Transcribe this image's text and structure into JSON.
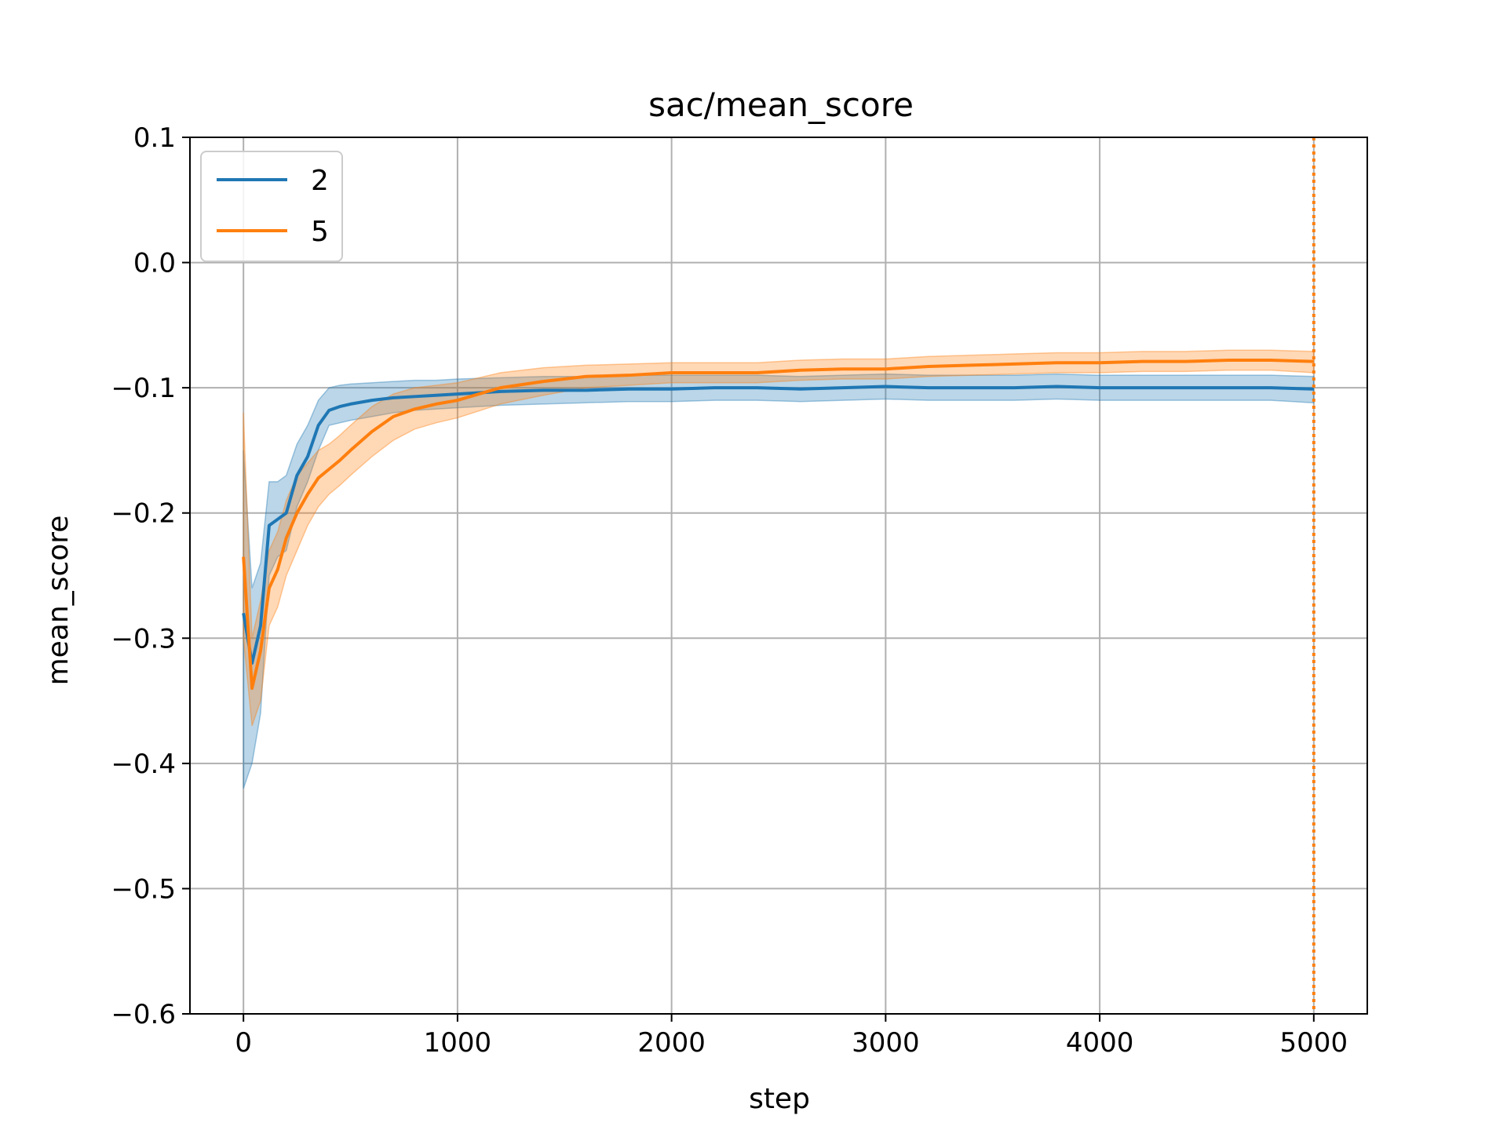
{
  "chart_data": {
    "type": "line",
    "title": "sac/mean_score",
    "xlabel": "step",
    "ylabel": "mean_score",
    "xlim": [
      -250,
      5250
    ],
    "ylim": [
      -0.6,
      0.1
    ],
    "xticks": [
      0,
      1000,
      2000,
      3000,
      4000,
      5000
    ],
    "xtick_labels": [
      "0",
      "1000",
      "2000",
      "3000",
      "4000",
      "5000"
    ],
    "yticks": [
      0.1,
      0.0,
      -0.1,
      -0.2,
      -0.3,
      -0.4,
      -0.5,
      -0.6
    ],
    "ytick_labels": [
      "0.1",
      "0.0",
      "−0.1",
      "−0.2",
      "−0.3",
      "−0.4",
      "−0.5",
      "−0.6"
    ],
    "grid": true,
    "legend_position": "top-left",
    "vertical_marker": {
      "x": 5000,
      "style": "dotted",
      "color": "#ff7f0e"
    },
    "series": [
      {
        "name": "2",
        "color": "#1f77b4",
        "x": [
          0,
          40,
          80,
          120,
          160,
          200,
          250,
          300,
          350,
          400,
          450,
          500,
          600,
          700,
          800,
          900,
          1000,
          1200,
          1400,
          1600,
          1800,
          2000,
          2200,
          2400,
          2600,
          2800,
          3000,
          3200,
          3400,
          3600,
          3800,
          4000,
          4200,
          4400,
          4600,
          4800,
          5000
        ],
        "y": [
          -0.28,
          -0.32,
          -0.29,
          -0.21,
          -0.205,
          -0.2,
          -0.17,
          -0.155,
          -0.13,
          -0.118,
          -0.115,
          -0.113,
          -0.11,
          -0.108,
          -0.107,
          -0.106,
          -0.105,
          -0.103,
          -0.102,
          -0.102,
          -0.101,
          -0.101,
          -0.1,
          -0.1,
          -0.101,
          -0.1,
          -0.099,
          -0.1,
          -0.1,
          -0.1,
          -0.099,
          -0.1,
          -0.1,
          -0.1,
          -0.1,
          -0.1,
          -0.101
        ],
        "lower": [
          -0.42,
          -0.4,
          -0.36,
          -0.25,
          -0.235,
          -0.23,
          -0.195,
          -0.175,
          -0.15,
          -0.13,
          -0.128,
          -0.126,
          -0.123,
          -0.12,
          -0.118,
          -0.117,
          -0.116,
          -0.114,
          -0.113,
          -0.112,
          -0.111,
          -0.111,
          -0.11,
          -0.11,
          -0.111,
          -0.11,
          -0.109,
          -0.11,
          -0.11,
          -0.11,
          -0.109,
          -0.11,
          -0.11,
          -0.11,
          -0.11,
          -0.11,
          -0.112
        ],
        "upper": [
          -0.15,
          -0.26,
          -0.24,
          -0.175,
          -0.175,
          -0.17,
          -0.145,
          -0.13,
          -0.11,
          -0.1,
          -0.098,
          -0.097,
          -0.096,
          -0.095,
          -0.094,
          -0.094,
          -0.093,
          -0.092,
          -0.091,
          -0.091,
          -0.09,
          -0.09,
          -0.09,
          -0.09,
          -0.091,
          -0.09,
          -0.089,
          -0.09,
          -0.09,
          -0.09,
          -0.089,
          -0.09,
          -0.09,
          -0.09,
          -0.09,
          -0.09,
          -0.091
        ]
      },
      {
        "name": "5",
        "color": "#ff7f0e",
        "x": [
          0,
          40,
          80,
          120,
          160,
          200,
          250,
          300,
          350,
          400,
          450,
          500,
          600,
          700,
          800,
          900,
          1000,
          1200,
          1400,
          1600,
          1800,
          2000,
          2200,
          2400,
          2600,
          2800,
          3000,
          3200,
          3400,
          3600,
          3800,
          4000,
          4200,
          4400,
          4600,
          4800,
          5000
        ],
        "y": [
          -0.235,
          -0.34,
          -0.31,
          -0.26,
          -0.245,
          -0.22,
          -0.2,
          -0.185,
          -0.172,
          -0.165,
          -0.158,
          -0.15,
          -0.135,
          -0.123,
          -0.117,
          -0.113,
          -0.11,
          -0.1,
          -0.095,
          -0.091,
          -0.09,
          -0.088,
          -0.088,
          -0.088,
          -0.086,
          -0.085,
          -0.085,
          -0.083,
          -0.082,
          -0.081,
          -0.08,
          -0.08,
          -0.079,
          -0.079,
          -0.078,
          -0.078,
          -0.079
        ],
        "lower": [
          -0.3,
          -0.37,
          -0.35,
          -0.29,
          -0.275,
          -0.25,
          -0.23,
          -0.21,
          -0.195,
          -0.185,
          -0.178,
          -0.17,
          -0.155,
          -0.142,
          -0.133,
          -0.128,
          -0.124,
          -0.113,
          -0.106,
          -0.1,
          -0.098,
          -0.096,
          -0.096,
          -0.096,
          -0.094,
          -0.093,
          -0.093,
          -0.091,
          -0.09,
          -0.089,
          -0.088,
          -0.088,
          -0.087,
          -0.087,
          -0.086,
          -0.086,
          -0.088
        ],
        "upper": [
          -0.12,
          -0.3,
          -0.27,
          -0.23,
          -0.215,
          -0.19,
          -0.17,
          -0.16,
          -0.15,
          -0.145,
          -0.138,
          -0.13,
          -0.115,
          -0.105,
          -0.1,
          -0.098,
          -0.096,
          -0.088,
          -0.084,
          -0.082,
          -0.081,
          -0.08,
          -0.08,
          -0.08,
          -0.078,
          -0.077,
          -0.077,
          -0.075,
          -0.074,
          -0.073,
          -0.072,
          -0.072,
          -0.071,
          -0.071,
          -0.07,
          -0.07,
          -0.071
        ]
      }
    ]
  }
}
